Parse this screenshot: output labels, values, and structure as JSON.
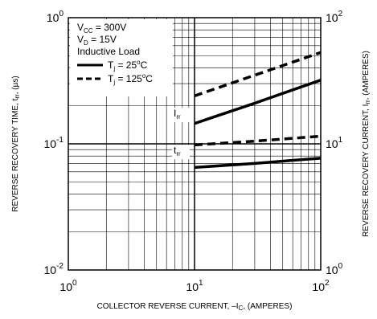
{
  "chart_data": {
    "type": "line",
    "x_axis": {
      "label": "COLLECTOR REVERSE CURRENT, –I",
      "label_sub": "C",
      "label_suffix": ", (AMPERES)",
      "scale": "log",
      "range": [
        1,
        100
      ],
      "ticks": [
        {
          "base": "10",
          "exp": "0",
          "value": 1
        },
        {
          "base": "10",
          "exp": "1",
          "value": 10
        },
        {
          "base": "10",
          "exp": "2",
          "value": 100
        }
      ]
    },
    "y_left_axis": {
      "label": "REVERSE RECOVERY TIME, t",
      "label_sub": "rr",
      "label_suffix": ", (µs)",
      "scale": "log",
      "range": [
        0.01,
        1
      ],
      "ticks": [
        {
          "base": "10",
          "exp": "0",
          "value": 1
        },
        {
          "base": "10",
          "exp": "-1",
          "value": 0.1
        },
        {
          "base": "10",
          "exp": "-2",
          "value": 0.01
        }
      ]
    },
    "y_right_axis": {
      "label": "REVERSE RECOVERY CURRENT, I",
      "label_sub": "rr",
      "label_suffix": ", (AMPERES)",
      "scale": "log",
      "range": [
        1,
        100
      ],
      "ticks": [
        {
          "base": "10",
          "exp": "2",
          "value": 100
        },
        {
          "base": "10",
          "exp": "1",
          "value": 10
        },
        {
          "base": "10",
          "exp": "0",
          "value": 1
        }
      ]
    },
    "grid": true,
    "legend": {
      "position": "top-left",
      "conditions": [
        {
          "text": "V",
          "sub": "CC",
          "after": " = 300V"
        },
        {
          "text": "V",
          "sub": "D",
          "after": " = 15V"
        },
        {
          "text": "Inductive Load",
          "sub": "",
          "after": ""
        }
      ],
      "entries": [
        {
          "style": "solid",
          "prefix": "T",
          "sub": "j",
          "suffix": " = 25",
          "sup": "o",
          "unit": "C"
        },
        {
          "style": "dashed",
          "prefix": "T",
          "sub": "j",
          "suffix": " = 125",
          "sup": "o",
          "unit": "C"
        }
      ]
    },
    "annotations": [
      {
        "base": "I",
        "sub": "rr"
      },
      {
        "base": "t",
        "sub": "rr"
      }
    ],
    "series": [
      {
        "curve": "Irr",
        "style": "solid",
        "axis": "right",
        "x": [
          10,
          30,
          100
        ],
        "y": [
          14.5,
          21,
          32
        ]
      },
      {
        "curve": "Irr",
        "style": "dashed",
        "axis": "right",
        "x": [
          10,
          30,
          100
        ],
        "y": [
          24,
          35,
          53
        ]
      },
      {
        "curve": "trr",
        "style": "solid",
        "axis": "left",
        "x": [
          10,
          30,
          100
        ],
        "y": [
          0.065,
          0.07,
          0.077
        ]
      },
      {
        "curve": "trr",
        "style": "dashed",
        "axis": "left",
        "x": [
          10,
          30,
          100
        ],
        "y": [
          0.098,
          0.105,
          0.115
        ]
      }
    ]
  }
}
